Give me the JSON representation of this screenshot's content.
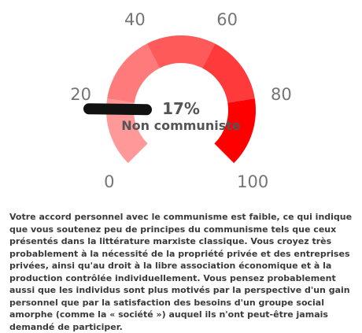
{
  "chart_data": {
    "type": "gauge",
    "value": 17,
    "min": 0,
    "max": 100,
    "display_value": "17%",
    "label": "Non communiste",
    "ticks": [
      0,
      20,
      40,
      60,
      80,
      100
    ],
    "bands": [
      {
        "from": 0,
        "to": 20,
        "color": "#ff9999"
      },
      {
        "from": 20,
        "to": 40,
        "color": "#ff7a7a"
      },
      {
        "from": 40,
        "to": 60,
        "color": "#ff5a5a"
      },
      {
        "from": 60,
        "to": 80,
        "color": "#ff3a3a"
      },
      {
        "from": 80,
        "to": 100,
        "color": "#ff0000"
      }
    ],
    "needle_color": "#111111"
  },
  "description": "Votre accord personnel avec le communisme est faible, ce qui indique que vous soutenez peu de principes du communisme tels que ceux présentés dans la littérature marxiste classique. Vous croyez très probablement à la nécessité de la propriété privée et des entreprises privées, ainsi qu'au droit à la libre association économique et à la production contrôlée individuellement. Vous pensez probablement aussi que les individus sont plus motivés par la perspective d'un gain personnel que par la satisfaction des besoins d'un groupe social amorphe (comme la « société ») auquel ils n'ont peut-être jamais demandé de participer."
}
